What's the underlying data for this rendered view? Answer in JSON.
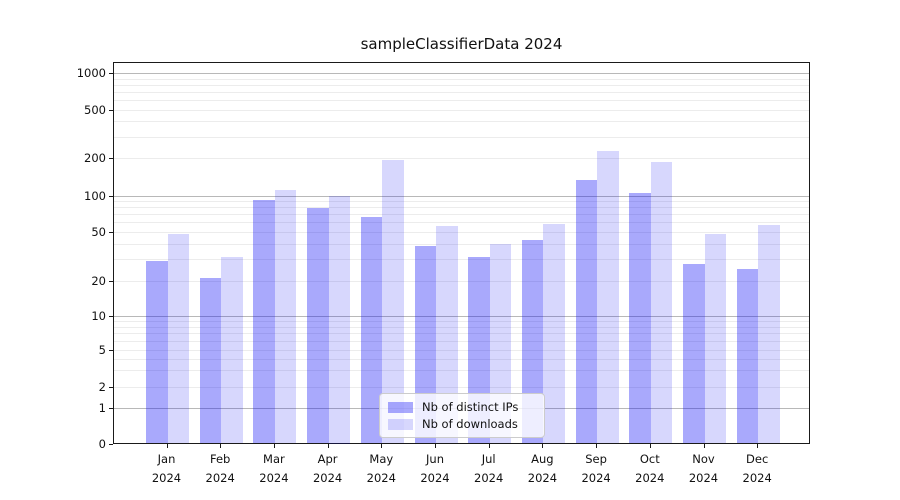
{
  "title": "sampleClassifierData 2024",
  "chart_data": {
    "type": "bar",
    "title": "sampleClassifierData 2024",
    "categories": [
      "Jan 2024",
      "Feb 2024",
      "Mar 2024",
      "Apr 2024",
      "May 2024",
      "Jun 2024",
      "Jul 2024",
      "Aug 2024",
      "Sep 2024",
      "Oct 2024",
      "Nov 2024",
      "Dec 2024"
    ],
    "months": [
      "Jan",
      "Feb",
      "Mar",
      "Apr",
      "May",
      "Jun",
      "Jul",
      "Aug",
      "Sep",
      "Oct",
      "Nov",
      "Dec"
    ],
    "year": "2024",
    "series": [
      {
        "name": "Nb of distinct IPs",
        "color": "#a8a8f8",
        "fill": "rgba(8,8,245,0.35)",
        "values": [
          29,
          21,
          92,
          79,
          66,
          38,
          31,
          43,
          134,
          104,
          27,
          25
        ]
      },
      {
        "name": "Nb of downloads",
        "color": "#d8d8fa",
        "fill": "rgba(8,8,245,0.16)",
        "values": [
          48,
          31,
          111,
          100,
          194,
          56,
          40,
          58,
          228,
          185,
          48,
          57
        ]
      }
    ],
    "xlabel": "",
    "ylabel": "",
    "yscale": "symlog",
    "yticks": [
      0,
      1,
      2,
      5,
      10,
      20,
      50,
      100,
      200,
      500,
      1000
    ],
    "ylim": [
      0,
      1500
    ],
    "grid": true,
    "legend_position": "lower center",
    "colors": {
      "major_grid": "#b8b8b8",
      "minor_grid": "#ececec",
      "axis": "#1a1a1a",
      "legend_border": "#cccccc"
    }
  }
}
